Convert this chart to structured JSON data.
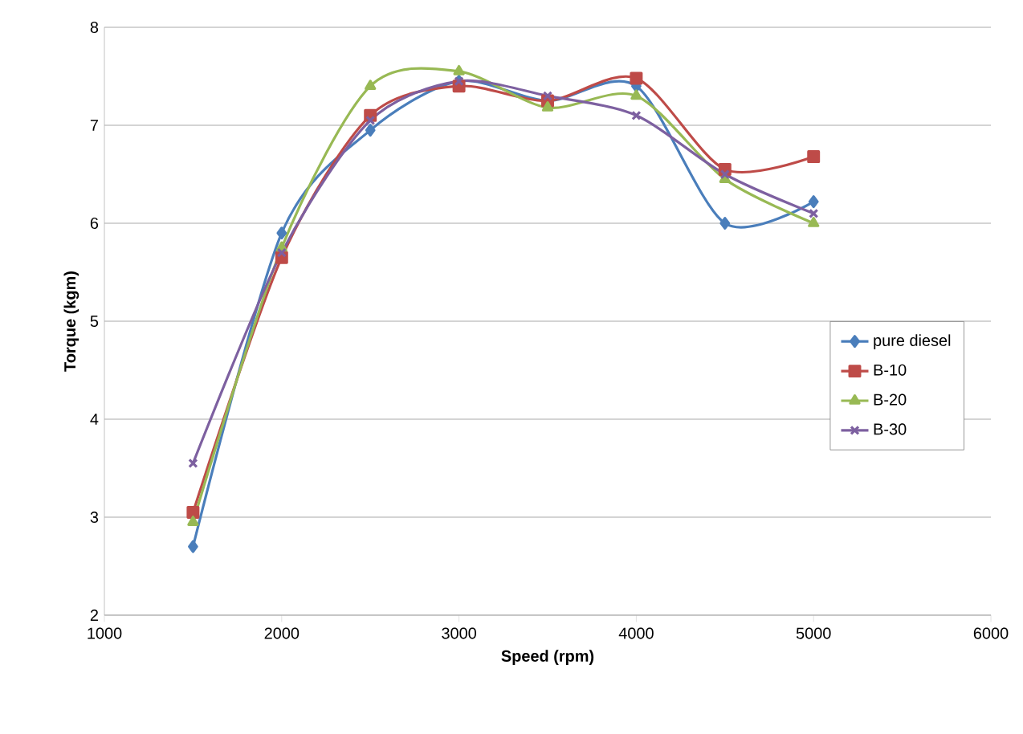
{
  "chart_data": {
    "type": "line",
    "xlabel": "Speed (rpm)",
    "ylabel": "Torque (kgm)",
    "x": [
      1500,
      2000,
      2500,
      3000,
      3500,
      4000,
      4500,
      5000
    ],
    "series": [
      {
        "name": "pure diesel",
        "color": "#4a7ebb",
        "marker": "diamond",
        "values": [
          2.7,
          5.9,
          6.95,
          7.45,
          7.25,
          7.4,
          6.0,
          6.22
        ]
      },
      {
        "name": "B-10",
        "color": "#be4b48",
        "marker": "square",
        "values": [
          3.05,
          5.65,
          7.1,
          7.4,
          7.25,
          7.48,
          6.55,
          6.68
        ]
      },
      {
        "name": "B-20",
        "color": "#98b954",
        "marker": "triangle",
        "values": [
          2.95,
          5.75,
          7.4,
          7.55,
          7.18,
          7.3,
          6.45,
          6.0
        ]
      },
      {
        "name": "B-30",
        "color": "#7d60a0",
        "marker": "cross",
        "values": [
          3.55,
          5.7,
          7.05,
          7.45,
          7.3,
          7.1,
          6.5,
          6.1
        ]
      }
    ],
    "xlim": [
      1000,
      6000
    ],
    "xticks": [
      1000,
      2000,
      3000,
      4000,
      5000,
      6000
    ],
    "ylim": [
      2,
      8
    ],
    "yticks": [
      2,
      3,
      4,
      5,
      6,
      7,
      8
    ],
    "grid": "y",
    "legend": "right"
  }
}
